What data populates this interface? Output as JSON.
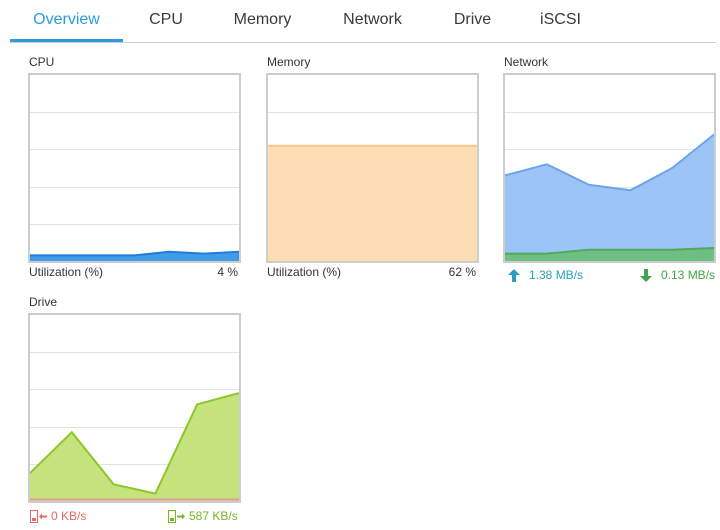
{
  "tabs": [
    {
      "label": "Overview",
      "active": true
    },
    {
      "label": "CPU"
    },
    {
      "label": "Memory"
    },
    {
      "label": "Network"
    },
    {
      "label": "Drive"
    },
    {
      "label": "iSCSI"
    }
  ],
  "panels": {
    "cpu": {
      "title": "CPU",
      "legend_label": "Utilization (%)",
      "legend_value": "4 %",
      "fill_color": "#2d8fe6",
      "series": [
        3,
        3,
        3,
        3,
        5,
        4,
        5
      ]
    },
    "memory": {
      "title": "Memory",
      "legend_label": "Utilization (%)",
      "legend_value": "62 %",
      "fill_color": "#fdddb3",
      "line_color": "#f5c88a",
      "series": [
        62,
        62,
        62,
        62,
        62,
        62
      ]
    },
    "network": {
      "title": "Network",
      "upload": "1.38 MB/s",
      "download": "0.13 MB/s",
      "upload_color": "#2a9fbf",
      "download_color": "#3fa54a",
      "upload_series": [
        46,
        52,
        41,
        38,
        50,
        68
      ],
      "download_series": [
        4,
        4,
        6,
        6,
        6,
        7
      ]
    },
    "drive": {
      "title": "Drive",
      "read": "0 KB/s",
      "write": "587 KB/s",
      "read_color": "#e66a6a",
      "write_color": "#7ab424",
      "series": [
        15,
        37,
        9,
        4,
        52,
        58
      ]
    }
  }
}
